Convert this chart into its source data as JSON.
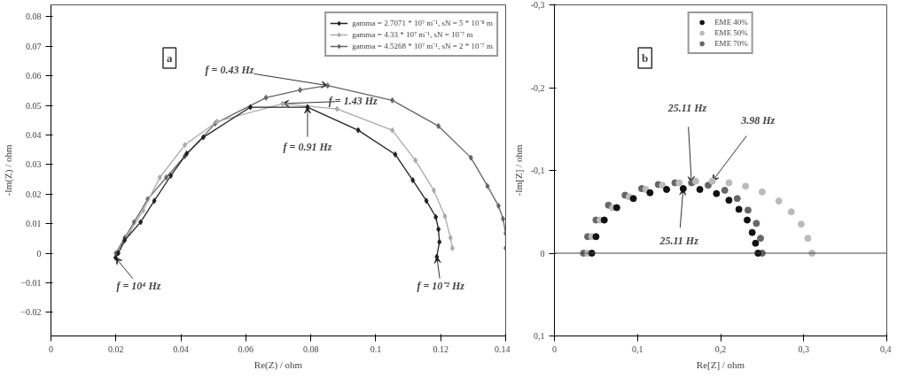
{
  "chart_data": [
    {
      "type": "line",
      "xlabel": "Re(Z) / ohm",
      "ylabel": "-Im(Z) / ohm",
      "xlim": [
        0,
        0.14
      ],
      "ylim": [
        -0.028,
        0.084
      ],
      "xticks": [
        0,
        0.02,
        0.04,
        0.06,
        0.08,
        0.1,
        0.12,
        0.14
      ],
      "yticks": [
        -0.02,
        -0.01,
        0,
        0.01,
        0.02,
        0.03,
        0.04,
        0.05,
        0.06,
        0.07,
        0.08
      ],
      "grid": false,
      "legend": "top right",
      "marker": "diamond",
      "line_style": "solid",
      "series": [
        {
          "name": "gamma = 2.7071 * 10⁷ m⁻¹, sN = 5 * 10⁻⁸ m",
          "color": "#222222",
          "x": [
            0.0199,
            0.0207,
            0.0227,
            0.0276,
            0.0318,
            0.0369,
            0.0418,
            0.0469,
            0.0614,
            0.079,
            0.0946,
            0.106,
            0.1114,
            0.1156,
            0.1185,
            0.1193,
            0.1196,
            0.1188
          ],
          "values": [
            -0.0015,
            0,
            0.0044,
            0.0105,
            0.0177,
            0.0262,
            0.0337,
            0.0392,
            0.0494,
            0.0494,
            0.0416,
            0.0334,
            0.0247,
            0.0177,
            0.0122,
            0.0081,
            0.0038,
            -0.0012
          ]
        },
        {
          "name": "gamma = 4.33 * 10⁷ m⁻¹, sN = 10⁻⁷ m",
          "color": "#aaaaaa",
          "x": [
            0.0207,
            0.0241,
            0.0284,
            0.0335,
            0.0412,
            0.0511,
            0.0713,
            0.0881,
            0.1051,
            0.1122,
            0.1179,
            0.1213,
            0.123,
            0.1236
          ],
          "values": [
            0,
            0.0067,
            0.0145,
            0.0256,
            0.0366,
            0.0445,
            0.0506,
            0.0488,
            0.0416,
            0.0314,
            0.0212,
            0.0125,
            0.0052,
            0.0017
          ]
        },
        {
          "name": "gamma = 4.5268 * 10⁷ m⁻¹, sN = 2 * 10⁻⁷ m",
          "color": "#666666",
          "x": [
            0.02,
            0.0227,
            0.0256,
            0.0298,
            0.0355,
            0.0412,
            0.0506,
            0.0662,
            0.0767,
            0.0852,
            0.1051,
            0.1193,
            0.1293,
            0.1344,
            0.1378,
            0.1392,
            0.14,
            0.14
          ],
          "values": [
            0,
            0.0052,
            0.0105,
            0.0183,
            0.0256,
            0.0328,
            0.0439,
            0.0526,
            0.0552,
            0.0567,
            0.0517,
            0.043,
            0.0323,
            0.0227,
            0.016,
            0.0116,
            0.0067,
            0.0017
          ]
        }
      ],
      "annotations": [
        "a",
        {
          "text": "f = 0.43 Hz",
          "x": 0.0852,
          "y": 0.0567
        },
        {
          "text": "f = 1.43 Hz",
          "x": 0.0713,
          "y": 0.0506
        },
        {
          "text": "f = 0.91 Hz",
          "x": 0.079,
          "y": 0.0494
        },
        {
          "text": "f = 10⁴ Hz",
          "x": 0.0199,
          "y": -0.0015
        },
        {
          "text": "f = 10⁻² Hz",
          "x": 0.1188,
          "y": -0.0012
        }
      ]
    },
    {
      "type": "scatter",
      "xlabel": "Re[Z] / ohm",
      "ylabel": "-Im[Z] / ohm",
      "xlim": [
        0,
        0.4
      ],
      "ylim": [
        0.1,
        -0.3
      ],
      "xticks": [
        0,
        {
          "value": 0.1,
          "label": "0,1"
        },
        {
          "value": 0.2,
          "label": "0,2"
        },
        {
          "value": 0.3,
          "label": "0,3"
        },
        {
          "value": 0.4,
          "label": "0,4"
        }
      ],
      "yticks": [
        {
          "value": -0.3,
          "label": "-0,3"
        },
        {
          "value": -0.2,
          "label": "-0,2"
        },
        {
          "value": -0.1,
          "label": "-0,1"
        },
        0,
        {
          "value": 0.1,
          "label": "0,1"
        }
      ],
      "grid": false,
      "legend": "top",
      "marker": "circle",
      "ref_lines": [
        {
          "axis": "y",
          "value": 0,
          "label": null,
          "color": "#444444"
        }
      ],
      "series": [
        {
          "name": "EME 40%",
          "color": "#111111",
          "x": [
            0.045,
            0.05,
            0.06,
            0.075,
            0.095,
            0.115,
            0.135,
            0.155,
            0.175,
            0.195,
            0.21,
            0.222,
            0.232,
            0.238,
            0.242,
            0.245
          ],
          "values": [
            0,
            -0.02,
            -0.04,
            -0.055,
            -0.066,
            -0.073,
            -0.077,
            -0.078,
            -0.077,
            -0.072,
            -0.064,
            -0.053,
            -0.04,
            -0.025,
            -0.012,
            0
          ]
        },
        {
          "name": "EME 50%",
          "color": "#bbbbbb",
          "x": [
            0.04,
            0.045,
            0.055,
            0.07,
            0.09,
            0.11,
            0.13,
            0.15,
            0.17,
            0.19,
            0.21,
            0.23,
            0.25,
            0.27,
            0.285,
            0.297,
            0.305,
            0.31
          ],
          "values": [
            0,
            -0.02,
            -0.04,
            -0.055,
            -0.068,
            -0.077,
            -0.082,
            -0.085,
            -0.087,
            -0.087,
            -0.085,
            -0.081,
            -0.074,
            -0.063,
            -0.05,
            -0.035,
            -0.018,
            0
          ]
        },
        {
          "name": "EME 70%",
          "color": "#666666",
          "x": [
            0.035,
            0.04,
            0.05,
            0.065,
            0.085,
            0.105,
            0.125,
            0.145,
            0.165,
            0.185,
            0.205,
            0.22,
            0.233,
            0.243,
            0.248,
            0.25
          ],
          "values": [
            0,
            -0.02,
            -0.04,
            -0.058,
            -0.07,
            -0.078,
            -0.083,
            -0.085,
            -0.085,
            -0.082,
            -0.076,
            -0.066,
            -0.052,
            -0.036,
            -0.018,
            0
          ]
        }
      ],
      "annotations": [
        "b",
        {
          "text": "25.11 Hz",
          "x": 0.165,
          "y": -0.085
        },
        {
          "text": "3.98 Hz",
          "x": 0.19,
          "y": -0.087
        },
        {
          "text": "25.11 Hz",
          "x": 0.155,
          "y": -0.078
        }
      ]
    }
  ]
}
